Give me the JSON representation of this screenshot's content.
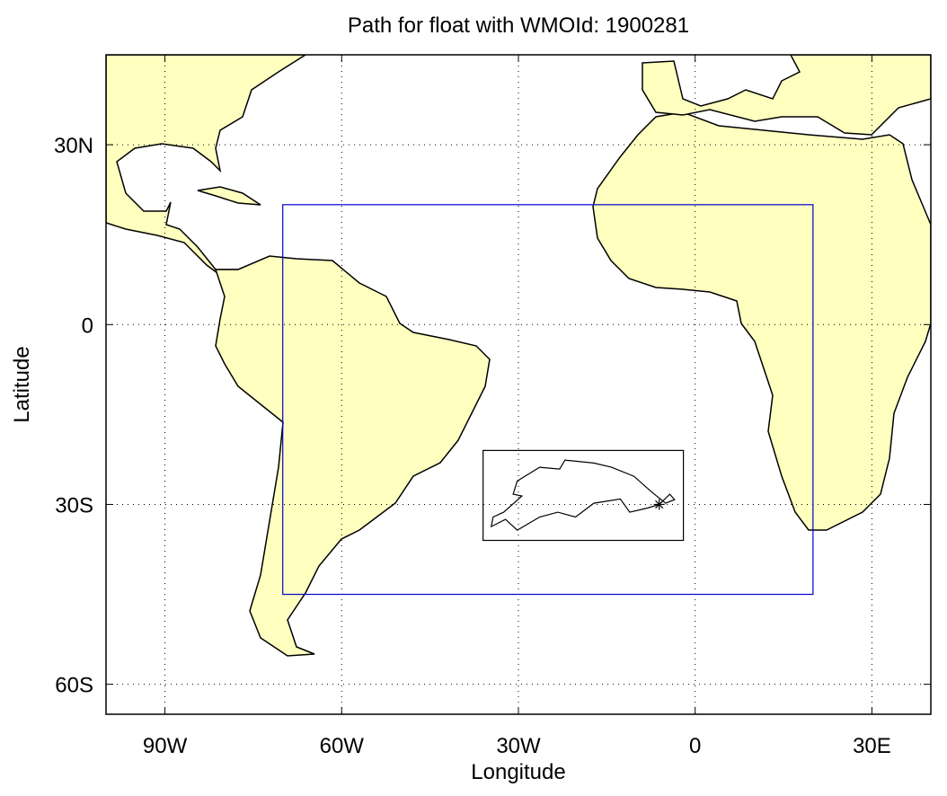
{
  "chart_data": {
    "type": "map",
    "title": "Path for float with WMOId: 1900281",
    "x_label": "Longitude",
    "y_label": "Latitude",
    "xlim": [
      -100,
      40
    ],
    "ylim": [
      -65,
      45
    ],
    "xticks": [
      {
        "value": -90,
        "label": "90W"
      },
      {
        "value": -60,
        "label": "60W"
      },
      {
        "value": -30,
        "label": "30W"
      },
      0,
      {
        "value": 30,
        "label": "30E"
      }
    ],
    "yticks": [
      {
        "value": 30,
        "label": "30N"
      },
      0,
      {
        "value": -30,
        "label": "30S"
      },
      {
        "value": -60,
        "label": "60S"
      }
    ],
    "grid": true,
    "land_color": "#ffffc0",
    "region_box": {
      "x": [
        -70,
        20
      ],
      "y": [
        -45,
        20
      ],
      "color": "#0000cc"
    },
    "track_box": {
      "x": [
        -36,
        -2
      ],
      "y": [
        -36,
        -21
      ],
      "color": "#000000"
    },
    "track": {
      "color": "#000000",
      "x": [
        -6.1,
        -4.3,
        -3.5,
        -5.0,
        -7.3,
        -10.4,
        -14.2,
        -17.2,
        -22.1,
        -23.0,
        -26.4,
        -30.2,
        -30.9,
        -29.4,
        -32.5,
        -34.3,
        -34.6,
        -32.2,
        -30.2,
        -26.4,
        -23.3,
        -20.3,
        -17.2,
        -12.7,
        -11.1,
        -8.1,
        -6.1
      ],
      "y": [
        -30.0,
        -28.3,
        -29.2,
        -29.8,
        -28.0,
        -25.3,
        -23.8,
        -23.1,
        -22.6,
        -24.1,
        -23.8,
        -26.1,
        -28.3,
        -28.6,
        -31.3,
        -32.1,
        -33.7,
        -32.5,
        -34.3,
        -32.1,
        -31.3,
        -32.1,
        -29.8,
        -29.1,
        -31.3,
        -30.6,
        -30.0
      ]
    }
  }
}
